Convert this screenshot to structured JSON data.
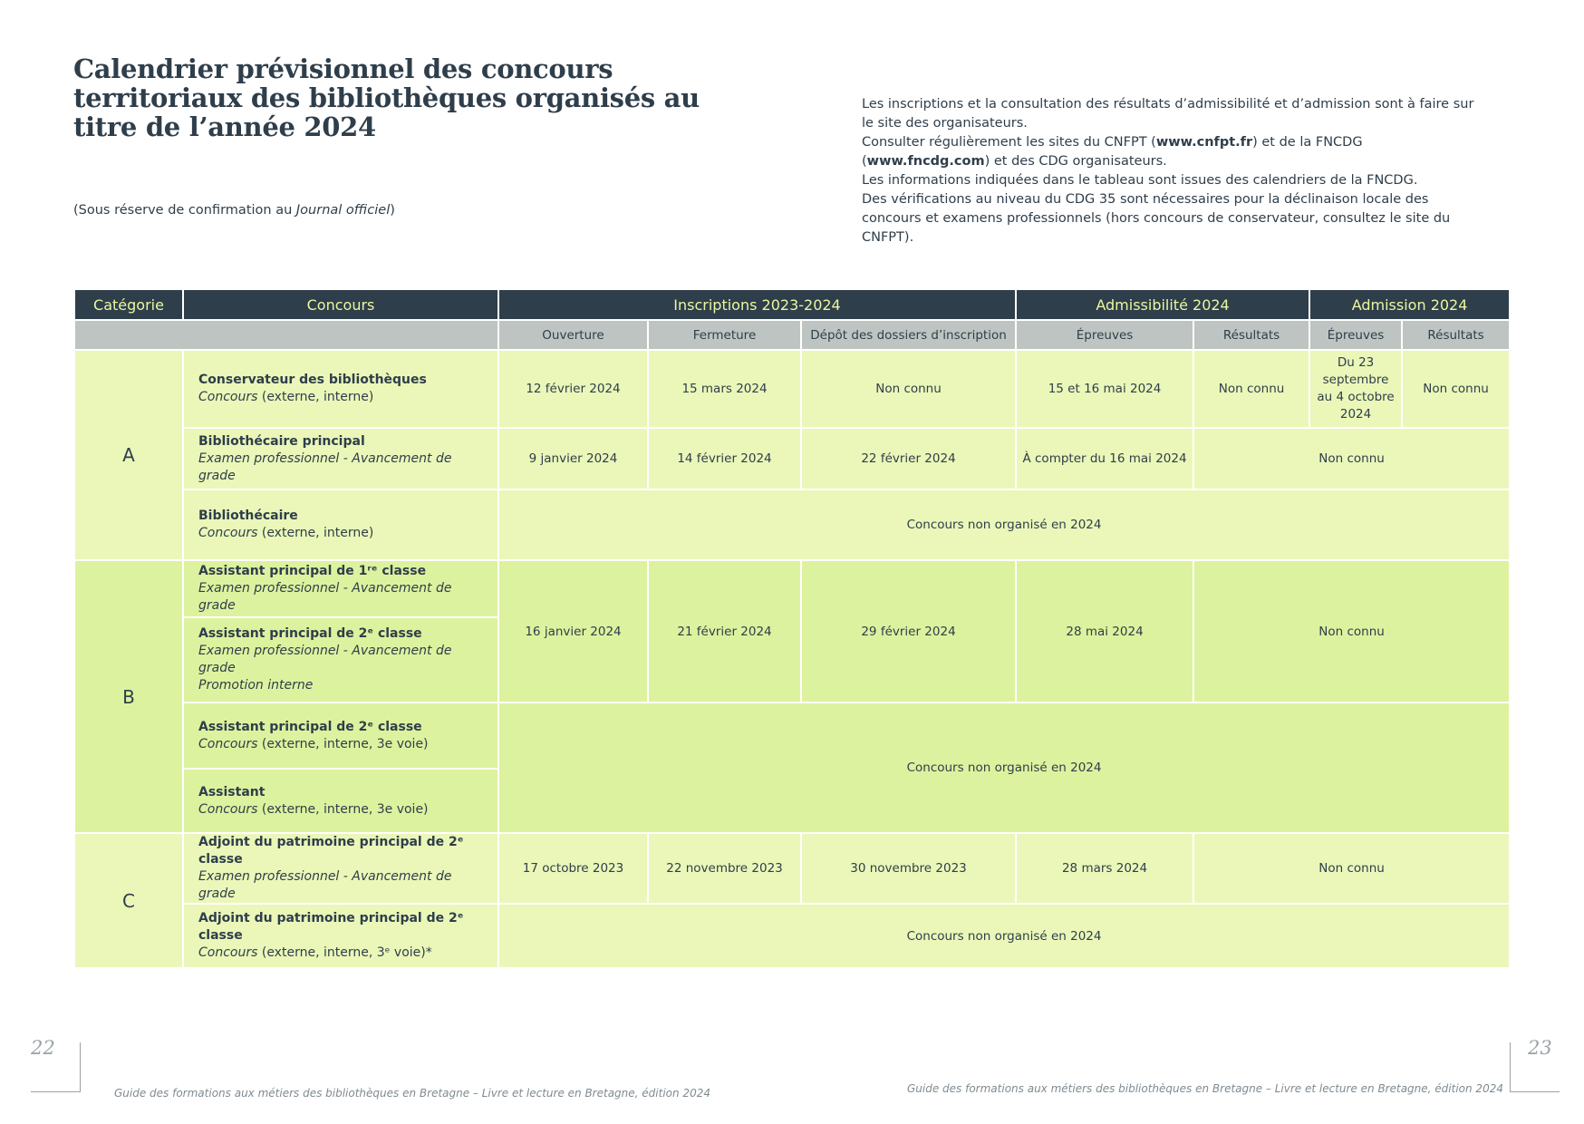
{
  "header": {
    "title": "Calendrier prévisionnel des concours territoriaux des bibliothèques organisés au titre de l’année 2024",
    "note_prefix": "(Sous réserve de confirmation au ",
    "note_italic": "Journal officiel",
    "note_suffix": ")"
  },
  "info": {
    "p1": "Les inscriptions et la consultation des résultats d’admissibilité et d’admission sont à faire sur le site des organisateurs.",
    "p2": [
      "Consulter régulièrement les sites du CNFPT (",
      "www.cnfpt.fr",
      ") et de la FNCDG (",
      "www.fncdg.com",
      ") et des CDG organisateurs."
    ],
    "p3": "Les informations indiquées dans le tableau sont issues des calendriers de la FNCDG.",
    "p4": "Des vérifications au niveau du CDG 35 sont nécessaires pour la déclinaison locale des concours et examens professionnels (hors concours de conservateur, consultez le site du CNFPT)."
  },
  "table": {
    "headers": [
      "Catégorie",
      "Concours",
      "Inscriptions 2023-2024",
      "Admissibilité 2024",
      "Admission 2024"
    ],
    "subheaders": [
      "Ouverture",
      "Fermeture",
      "Dépôt des dossiers d’inscription",
      "Épreuves",
      "Résultats",
      "Épreuves",
      "Résultats"
    ],
    "categories": [
      "A",
      "B",
      "C"
    ],
    "rows": [
      {
        "name": "Conservateur des bibliothèques",
        "type": "Concours",
        "detail": " (externe, interne)",
        "cells": [
          "12 février 2024",
          "15 mars 2024",
          "Non connu",
          "15 et 16 mai 2024",
          "Non connu",
          "Du 23 septembre au 4 octobre 2024",
          "Non connu"
        ]
      },
      {
        "name": "Bibliothécaire principal",
        "type": "Examen professionnel - Avancement de grade",
        "cells": [
          "9 janvier 2024",
          "14 février 2024",
          "22 février 2024",
          "À compter du 16 mai 2024",
          "Non connu"
        ]
      },
      {
        "name": "Bibliothécaire",
        "type": "Concours",
        "detail": " (externe, interne)",
        "cells": [
          "Concours non organisé en 2024"
        ]
      },
      {
        "name": "Assistant principal de 1ʳᵉ classe",
        "type": "Examen professionnel - Avancement de grade",
        "cells": [
          "16 janvier 2024",
          "21 février 2024",
          "29 février 2024",
          "28 mai 2024",
          "Non connu"
        ]
      },
      {
        "name": "Assistant principal de 2ᵉ classe",
        "type": "Examen professionnel - Avancement de grade",
        "type2": "Promotion interne"
      },
      {
        "name": "Assistant principal de 2ᵉ classe",
        "type": "Concours",
        "detail": " (externe, interne, 3e voie)",
        "cells": [
          "Concours non organisé en 2024"
        ]
      },
      {
        "name": "Assistant",
        "type": "Concours",
        "detail": " (externe, interne, 3e voie)"
      },
      {
        "name": "Adjoint du patrimoine principal de 2ᵉ classe",
        "type": "Examen professionnel - Avancement de grade",
        "cells": [
          "17 octobre 2023",
          "22 novembre 2023",
          "30 novembre 2023",
          "28 mars 2024",
          "Non connu"
        ]
      },
      {
        "name": "Adjoint du patrimoine principal de 2ᵉ classe",
        "type": "Concours",
        "detail": " (externe, interne, 3ᵉ voie)*",
        "cells": [
          "Concours non organisé en 2024"
        ]
      }
    ]
  },
  "footer": {
    "page_left": "22",
    "page_right": "23",
    "text_left": "Guide des formations aux métiers des bibliothèques en Bretagne – Livre et lecture en Bretagne, édition 2024",
    "text_right": "Guide des formations aux métiers des bibliothèques en Bretagne – Livre et lecture en Bretagne, édition 2024"
  }
}
